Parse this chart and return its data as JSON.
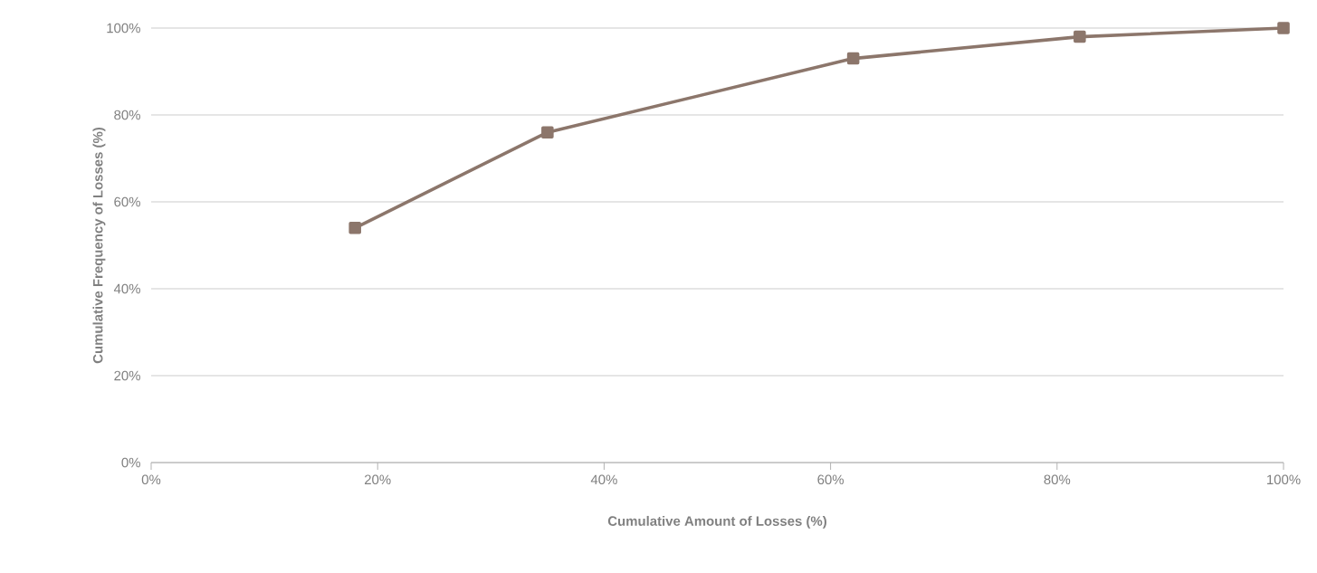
{
  "chart_data": {
    "type": "line",
    "xlabel": "Cumulative Amount of Losses (%)",
    "ylabel": "Cumulative Frequency  of Losses  (%)",
    "x": [
      18,
      35,
      62,
      82,
      100
    ],
    "series": [
      {
        "color": "#8c766b",
        "values": [
          54,
          76,
          93,
          98,
          100
        ]
      }
    ],
    "xlim": [
      0,
      100
    ],
    "ylim": [
      0,
      100
    ],
    "xticks": [
      {
        "value": 0,
        "label": "0%"
      },
      {
        "value": 20,
        "label": "20%"
      },
      {
        "value": 40,
        "label": "40%"
      },
      {
        "value": 60,
        "label": "60%"
      },
      {
        "value": 80,
        "label": "80%"
      },
      {
        "value": 100,
        "label": "100%"
      }
    ],
    "yticks": [
      {
        "value": 0,
        "label": "0%"
      },
      {
        "value": 20,
        "label": "20%"
      },
      {
        "value": 40,
        "label": "40%"
      },
      {
        "value": 60,
        "label": "60%"
      },
      {
        "value": 80,
        "label": "80%"
      },
      {
        "value": 100,
        "label": "100%"
      }
    ],
    "grid": "y",
    "marker": "square",
    "line_style": "solid"
  }
}
